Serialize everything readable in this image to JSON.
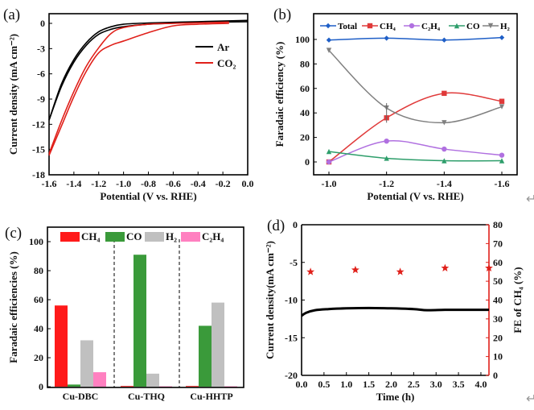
{
  "chart_data": [
    {
      "panel": "(a)",
      "type": "line",
      "xlabel": "Potential (V vs. RHE)",
      "ylabel": "Current density (mA cm⁻²)",
      "xlim": [
        -1.6,
        0.0
      ],
      "ylim": [
        -18,
        1.15
      ],
      "xticks": [
        -1.6,
        -1.4,
        -1.2,
        -1.0,
        -0.8,
        -0.6,
        -0.4,
        -0.2,
        0.0
      ],
      "yticks": [
        0,
        -3,
        -6,
        -9,
        -12,
        -15,
        -18
      ],
      "legend": "top-right",
      "series": [
        {
          "name": "Ar",
          "color": "#000000",
          "branches": [
            [
              [
                -1.6,
                -11.5
              ],
              [
                -1.5,
                -7.5
              ],
              [
                -1.4,
                -4.6
              ],
              [
                -1.3,
                -2.6
              ],
              [
                -1.2,
                -1.3
              ],
              [
                -1.1,
                -0.7
              ],
              [
                -1.0,
                -0.4
              ],
              [
                -0.8,
                -0.1
              ],
              [
                -0.4,
                0.1
              ],
              [
                0,
                0.2
              ]
            ],
            [
              [
                -1.6,
                -11.5
              ],
              [
                -1.5,
                -7.2
              ],
              [
                -1.4,
                -4.3
              ],
              [
                -1.3,
                -2.3
              ],
              [
                -1.2,
                -1.0
              ],
              [
                -1.1,
                -0.4
              ],
              [
                -1.0,
                -0.1
              ],
              [
                -0.8,
                0.05
              ],
              [
                -0.4,
                0.2
              ],
              [
                0,
                0.35
              ]
            ]
          ]
        },
        {
          "name": "CO₂",
          "color": "#e0201a",
          "branches": [
            [
              [
                -1.6,
                -15.7
              ],
              [
                -1.5,
                -12.2
              ],
              [
                -1.4,
                -8.7
              ],
              [
                -1.3,
                -5.7
              ],
              [
                -1.2,
                -3.5
              ],
              [
                -1.1,
                -2.6
              ],
              [
                -1.0,
                -2.1
              ],
              [
                -0.8,
                -1.1
              ],
              [
                -0.6,
                -0.3
              ],
              [
                -0.4,
                -0.1
              ],
              [
                -0.15,
                0.0
              ]
            ],
            [
              [
                -1.6,
                -15.5
              ],
              [
                -1.5,
                -11.6
              ],
              [
                -1.4,
                -8.1
              ],
              [
                -1.3,
                -5.1
              ],
              [
                -1.2,
                -2.9
              ],
              [
                -1.1,
                -1.2
              ],
              [
                -1.0,
                -0.5
              ],
              [
                -0.8,
                -0.1
              ],
              [
                -0.6,
                0.0
              ],
              [
                -0.15,
                0.15
              ]
            ]
          ]
        }
      ]
    },
    {
      "panel": "(b)",
      "type": "line",
      "xlabel": "Potential (V vs. RHE)",
      "ylabel": "Faradaic efficiency (%)",
      "x": [
        -1.0,
        -1.2,
        -1.4,
        -1.6
      ],
      "xlim": [
        -0.947,
        -1.653
      ],
      "ylim": [
        -10.5,
        121
      ],
      "xticks": [
        -1.0,
        -1.2,
        -1.4,
        -1.6
      ],
      "yticks": [
        0,
        20,
        40,
        60,
        80,
        100
      ],
      "legend": "top",
      "series": [
        {
          "name": "Total",
          "color": "#1f5fc7",
          "marker": "diamond",
          "values": [
            99.5,
            101,
            99.5,
            101.5
          ]
        },
        {
          "name": "CH₄",
          "color": "#e03a3a",
          "marker": "square",
          "values": [
            0,
            36,
            56,
            49.5
          ]
        },
        {
          "name": "C₂H₄",
          "color": "#b070e0",
          "marker": "circle",
          "values": [
            0,
            17,
            10.5,
            5.5
          ]
        },
        {
          "name": "CO",
          "color": "#2e9e6b",
          "marker": "triangle",
          "values": [
            8.5,
            3,
            1,
            1
          ]
        },
        {
          "name": "H₂",
          "color": "#808080",
          "marker": "down-triangle",
          "values": [
            91,
            44,
            32,
            45
          ]
        }
      ]
    },
    {
      "panel": "(c)",
      "type": "bar",
      "ylabel": "Faradaic efficiencies (%)",
      "categories": [
        "Cu-DBC",
        "Cu-THQ",
        "Cu-HHTP"
      ],
      "ylim": [
        -0.5,
        110
      ],
      "yticks": [
        0,
        20,
        40,
        60,
        80,
        100
      ],
      "legend": "top",
      "series": [
        {
          "name": "CH₄",
          "color": "#ff1a1a",
          "values": [
            56,
            0.5,
            0.5
          ]
        },
        {
          "name": "CO",
          "color": "#3a9a3a",
          "values": [
            1.5,
            91,
            42
          ]
        },
        {
          "name": "H₂",
          "color": "#c0c0c0",
          "values": [
            32,
            9,
            58
          ]
        },
        {
          "name": "C₂H₄",
          "color": "#ff80c0",
          "values": [
            10,
            0.3,
            0.3
          ]
        }
      ]
    },
    {
      "panel": "(d)",
      "type": "line",
      "xlabel": "Time (h)",
      "ylabel": "Current density(mA cm⁻²)",
      "ylabel_right": "FE of CH₄ (%)",
      "xlim": [
        0,
        4.18
      ],
      "ylim": [
        -20,
        0
      ],
      "ylim_right": [
        0,
        80
      ],
      "xticks": [
        0.0,
        0.5,
        1.0,
        1.5,
        2.0,
        2.5,
        3.0,
        3.5,
        4.0
      ],
      "yticks": [
        0,
        -5,
        -10,
        -15,
        -20
      ],
      "yticks_right": [
        0,
        10,
        20,
        30,
        40,
        50,
        60,
        70,
        80
      ],
      "current": [
        [
          0,
          -12.1
        ],
        [
          0.1,
          -11.7
        ],
        [
          0.3,
          -11.35
        ],
        [
          0.6,
          -11.2
        ],
        [
          1.0,
          -11.1
        ],
        [
          1.5,
          -11.05
        ],
        [
          2.0,
          -11.1
        ],
        [
          2.5,
          -11.2
        ],
        [
          2.8,
          -11.35
        ],
        [
          3.2,
          -11.3
        ],
        [
          3.6,
          -11.3
        ],
        [
          4.18,
          -11.3
        ]
      ],
      "fe_ch4": {
        "color": "#e0201a",
        "x": [
          0.2,
          1.2,
          2.2,
          3.2,
          4.18
        ],
        "values": [
          55,
          56,
          55,
          57,
          57
        ]
      }
    }
  ],
  "return_mark": "↵"
}
